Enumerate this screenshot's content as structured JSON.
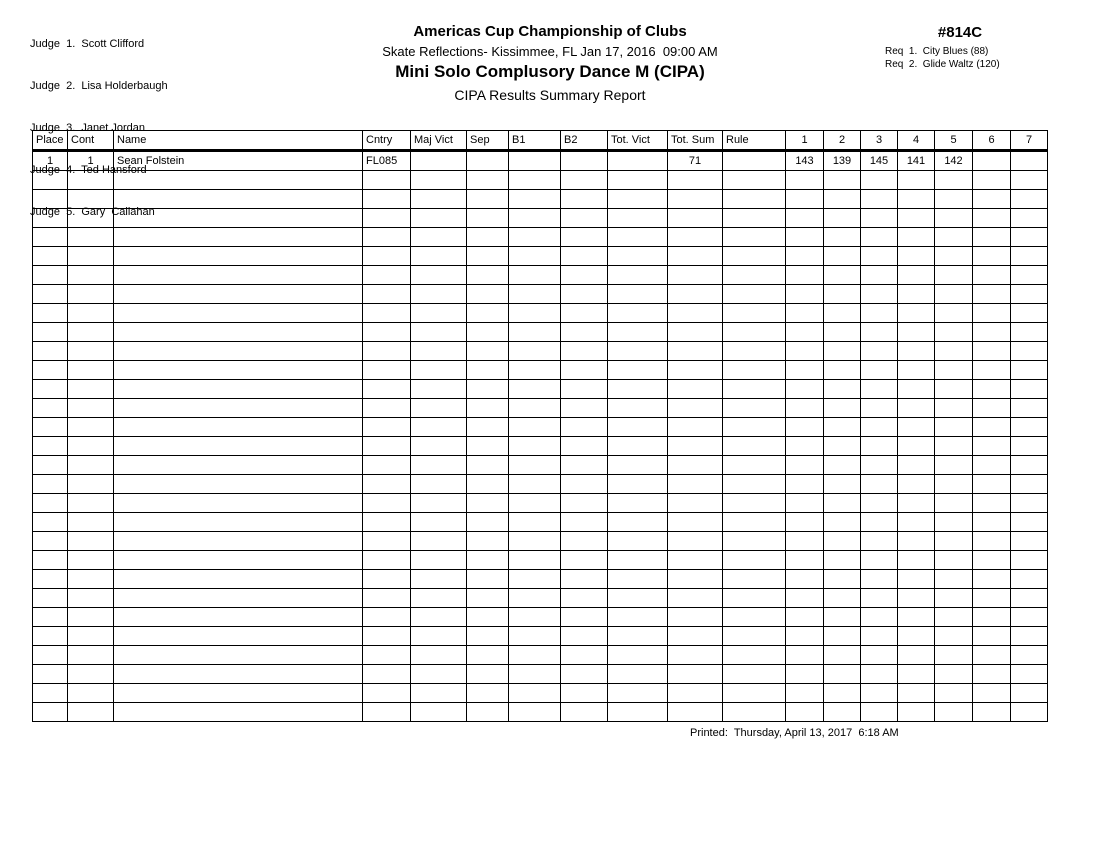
{
  "page": {
    "judges": [
      "Judge  1.  Scott Clifford",
      "Judge  2.  Lisa Holderbaugh",
      "Judge  3.  Janet Jordan",
      "Judge  4.  Ted Hansford",
      "Judge  5.  Gary  Callahan"
    ],
    "header": {
      "title": "Americas Cup Championship of Clubs",
      "venue_date": "Skate Reflections- Kissimmee, FL Jan 17, 2016  09:00 AM",
      "event_title": "Mini Solo Complusory Dance M (CIPA)",
      "report_title": "CIPA Results Summary Report",
      "event_number": "#814C",
      "requirements": [
        "Req  1.  City Blues (88)",
        "Req  2.  Glide Waltz (120)"
      ]
    },
    "table": {
      "columns": [
        "Place",
        "Cont",
        "Name",
        "Cntry",
        "Maj Vict",
        "Sep",
        "B1",
        "B2",
        "Tot. Vict",
        "Tot. Sum",
        "Rule",
        "1",
        "2",
        "3",
        "4",
        "5",
        "6",
        "7"
      ],
      "rows": [
        [
          "1",
          "1",
          "Sean Folstein",
          "FL085",
          "",
          "",
          "",
          "",
          "",
          "71",
          "",
          "143",
          "139",
          "145",
          "141",
          "142",
          "",
          ""
        ]
      ],
      "empty_row_count": 29
    },
    "footer": {
      "printed": "Printed:  Thursday, April 13, 2017  6:18 AM"
    },
    "colors": {
      "text": "#000000",
      "background": "#ffffff",
      "border": "#000000"
    }
  }
}
